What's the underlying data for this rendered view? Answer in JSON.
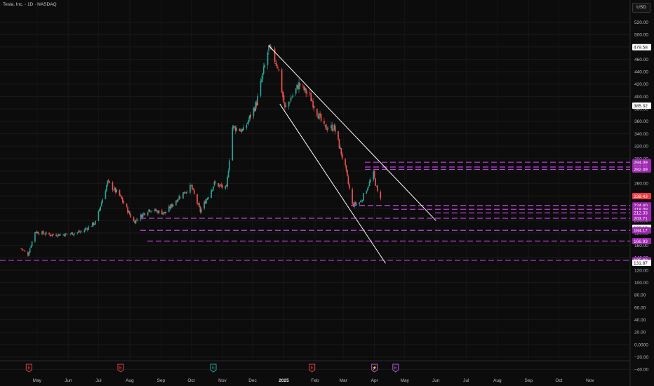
{
  "header": {
    "title": "Tesla, Inc. · 1D · NASDAQ",
    "currency": "USD"
  },
  "chart_data": {
    "type": "candlestick",
    "ylim": [
      -45,
      530
    ],
    "y_ticks": [
      520,
      500,
      480,
      460,
      440,
      420,
      400,
      380,
      360,
      340,
      320,
      300,
      280,
      260,
      240,
      220,
      200,
      180,
      160,
      140,
      120,
      100,
      80,
      60,
      40,
      20,
      0,
      -20,
      -40
    ],
    "y_tick_labels": [
      "520.00",
      "500.00",
      "480.00",
      "460.00",
      "440.00",
      "420.00",
      "400.00",
      "380.00",
      "360.00",
      "340.00",
      "320.00",
      "300.00",
      "280.00",
      "260.00",
      "240.00",
      "220.00",
      "200.00",
      "180.00",
      "160.00",
      "140.00",
      "120.00",
      "100.00",
      "80.00",
      "60.00",
      "40.00",
      "20.00",
      "0.0000",
      "−20.00",
      "−40.00"
    ],
    "x_ticks": [
      {
        "label": "May",
        "date": "2024-05-01"
      },
      {
        "label": "Jun",
        "date": "2024-06-01"
      },
      {
        "label": "Jul",
        "date": "2024-07-01"
      },
      {
        "label": "Aug",
        "date": "2024-08-01"
      },
      {
        "label": "Sep",
        "date": "2024-09-01"
      },
      {
        "label": "Oct",
        "date": "2024-10-01"
      },
      {
        "label": "Nov",
        "date": "2024-11-01"
      },
      {
        "label": "Dec",
        "date": "2024-12-01"
      },
      {
        "label": "2025",
        "date": "2025-01-01",
        "bold": true
      },
      {
        "label": "Feb",
        "date": "2025-02-01"
      },
      {
        "label": "Mar",
        "date": "2025-03-01"
      },
      {
        "label": "Apr",
        "date": "2025-04-01"
      },
      {
        "label": "May",
        "date": "2025-05-01"
      },
      {
        "label": "Jun",
        "date": "2025-06-01"
      },
      {
        "label": "Jul",
        "date": "2025-07-01"
      },
      {
        "label": "Aug",
        "date": "2025-08-01"
      },
      {
        "label": "Sep",
        "date": "2025-09-01"
      },
      {
        "label": "Oct",
        "date": "2025-10-01"
      },
      {
        "label": "Nov",
        "date": "2025-11-01"
      }
    ],
    "price_path": [
      [
        "2024-04-15",
        155
      ],
      [
        "2024-04-22",
        145
      ],
      [
        "2024-04-29",
        182
      ],
      [
        "2024-05-15",
        177
      ],
      [
        "2024-05-31",
        178
      ],
      [
        "2024-06-14",
        182
      ],
      [
        "2024-06-28",
        197
      ],
      [
        "2024-07-10",
        262
      ],
      [
        "2024-07-22",
        240
      ],
      [
        "2024-08-05",
        198
      ],
      [
        "2024-08-20",
        218
      ],
      [
        "2024-09-05",
        212
      ],
      [
        "2024-09-20",
        240
      ],
      [
        "2024-10-01",
        255
      ],
      [
        "2024-10-10",
        215
      ],
      [
        "2024-10-24",
        260
      ],
      [
        "2024-11-05",
        251
      ],
      [
        "2024-11-11",
        351
      ],
      [
        "2024-11-22",
        345
      ],
      [
        "2024-12-05",
        390
      ],
      [
        "2024-12-17",
        479
      ],
      [
        "2024-12-26",
        450
      ],
      [
        "2025-01-02",
        380
      ],
      [
        "2025-01-16",
        420
      ],
      [
        "2025-01-27",
        400
      ],
      [
        "2025-02-10",
        350
      ],
      [
        "2025-02-20",
        350
      ],
      [
        "2025-03-03",
        285
      ],
      [
        "2025-03-10",
        225
      ],
      [
        "2025-03-18",
        230
      ],
      [
        "2025-03-31",
        275
      ],
      [
        "2025-04-04",
        245
      ],
      [
        "2025-04-07",
        239
      ]
    ],
    "levels": [
      294.09,
      286.36,
      282.49,
      224.4,
      218.09,
      212.33,
      203.71,
      184.17,
      166.93,
      135.92
    ],
    "price_labels": [
      {
        "value": 479.58,
        "text": "479.58",
        "style": "white"
      },
      {
        "value": 385.32,
        "text": "385.32",
        "style": "white"
      },
      {
        "value": 294.09,
        "text": "294.09",
        "style": "purple"
      },
      {
        "value": 286.36,
        "text": "286.36",
        "style": "purple"
      },
      {
        "value": 282.49,
        "text": "282.49",
        "style": "purple"
      },
      {
        "value": 239.43,
        "text": "239.43",
        "style": "red"
      },
      {
        "value": 224.4,
        "text": "224.40",
        "style": "purple"
      },
      {
        "value": 218.09,
        "text": "218.09",
        "style": "purple"
      },
      {
        "value": 212.33,
        "text": "212.33",
        "style": "purple"
      },
      {
        "value": 203.71,
        "text": "203.71",
        "style": "purple"
      },
      {
        "value": 188.19,
        "text": "188.19",
        "style": "white"
      },
      {
        "value": 184.17,
        "text": "184.17",
        "style": "purple"
      },
      {
        "value": 166.93,
        "text": "166.93",
        "style": "purple"
      },
      {
        "value": 135.92,
        "text": "135.92",
        "style": "purple"
      },
      {
        "value": 131.87,
        "text": "131.87",
        "style": "white"
      }
    ],
    "trendlines": [
      {
        "from": [
          "2024-12-17",
          482
        ],
        "to": [
          "2025-06-01",
          200
        ]
      },
      {
        "from": [
          "2024-12-28",
          388
        ],
        "to": [
          "2025-04-12",
          131
        ]
      }
    ],
    "events": [
      {
        "date": "2024-04-23",
        "label": "E",
        "color": "#e0404a"
      },
      {
        "date": "2024-07-23",
        "label": "E",
        "color": "#e0404a"
      },
      {
        "date": "2024-10-23",
        "label": "E",
        "color": "#26a69a"
      },
      {
        "date": "2025-01-29",
        "label": "E",
        "color": "#e0404a"
      },
      {
        "date": "2025-04-01",
        "label": "⚡",
        "color": "#b060e0"
      },
      {
        "date": "2025-04-22",
        "label": "E",
        "color": "#b060e0"
      }
    ],
    "colors": {
      "up": "#26a69a",
      "down": "#ef5350",
      "level": "#c040e0",
      "trend": "#ffffff",
      "last": "#f23645"
    }
  }
}
